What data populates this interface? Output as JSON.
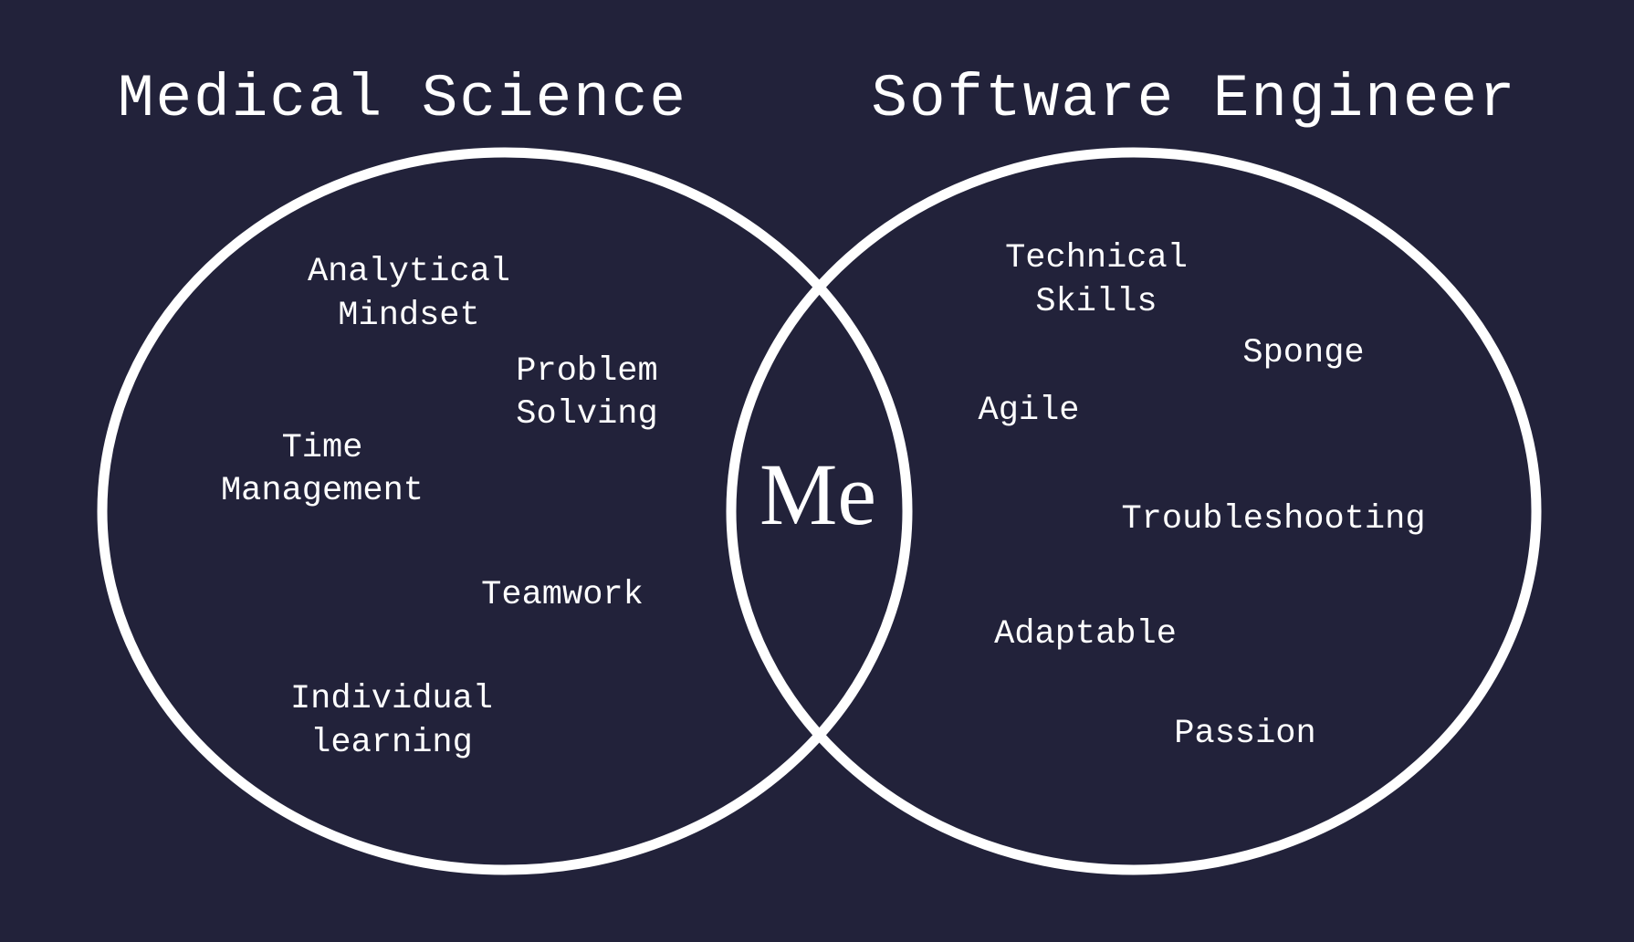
{
  "colors": {
    "background": "#22223a",
    "stroke": "#ffffff",
    "text": "#ffffff"
  },
  "diagram": {
    "type": "venn",
    "center_label": "Me",
    "left_set": {
      "title": "Medical Science",
      "items": [
        [
          "Analytical",
          "Mindset"
        ],
        [
          "Problem",
          "Solving"
        ],
        [
          "Time",
          "Management"
        ],
        [
          "Teamwork"
        ],
        [
          "Individual",
          "learning"
        ]
      ]
    },
    "right_set": {
      "title": "Software Engineer",
      "items": [
        [
          "Technical",
          "Skills"
        ],
        [
          "Sponge"
        ],
        [
          "Agile"
        ],
        [
          "Troubleshooting"
        ],
        [
          "Adaptable"
        ],
        [
          "Passion"
        ]
      ]
    }
  }
}
